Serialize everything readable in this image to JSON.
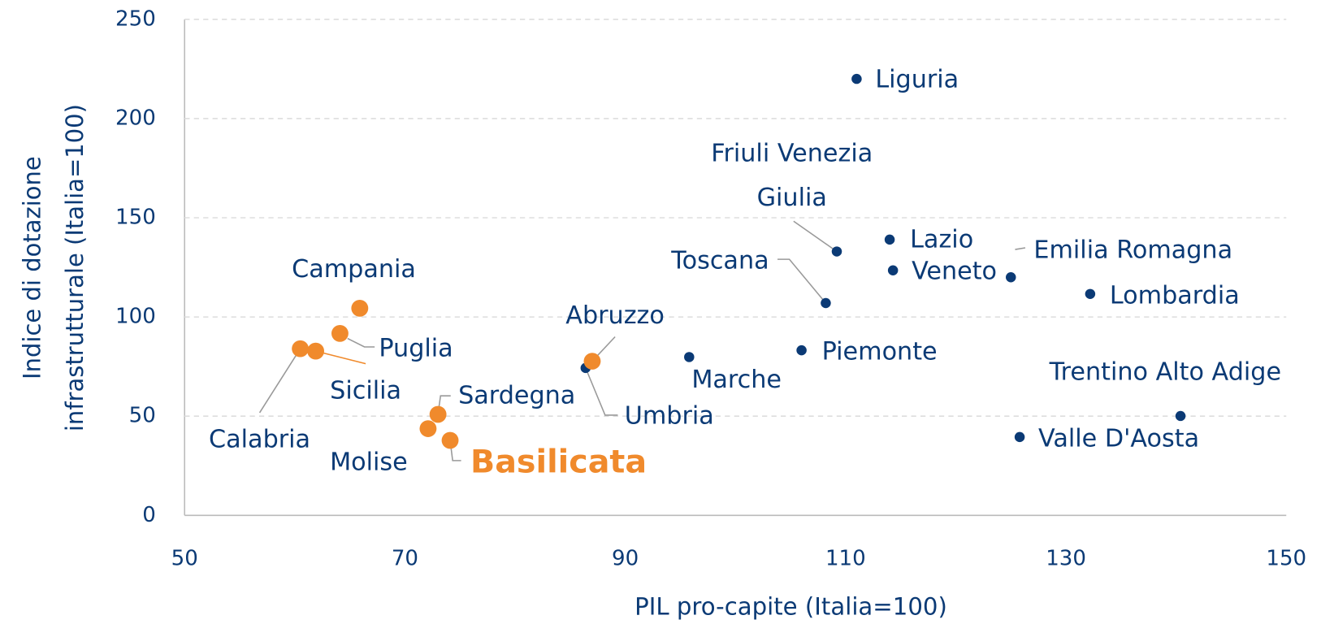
{
  "chart_data": {
    "type": "scatter",
    "xlabel": "PIL pro-capite (Italia=100)",
    "ylabel": [
      "Indice di dotazione",
      "infrastrutturale (Italia=100)"
    ],
    "xlim": [
      50,
      150
    ],
    "xticks": [
      50,
      70,
      90,
      110,
      130,
      150
    ],
    "ylim": [
      0,
      250
    ],
    "yticks": [
      0,
      50,
      100,
      150,
      200,
      250
    ],
    "grid": true,
    "series": [
      {
        "color": "#0b3a75",
        "labels": [
          "Liguria",
          "Friuli Venezia Giulia",
          "Lazio",
          "Veneto",
          "Emilia Romagna",
          "Lombardia",
          "Toscana",
          "Piemonte",
          "Marche",
          "Umbria",
          "Trentino Alto Adige",
          "Valle D'Aosta"
        ],
        "x": [
          111,
          109.2,
          114,
          114.3,
          125,
          132.2,
          108.2,
          106,
          95.8,
          86.4,
          140.4,
          125.8
        ],
        "values": [
          220,
          133,
          139,
          123.5,
          120,
          111.6,
          107,
          83.2,
          79.8,
          74.3,
          50.1,
          39.5
        ]
      },
      {
        "color": "#f08a2c",
        "labels": [
          "Campania",
          "Puglia",
          "Calabria",
          "Sicilia",
          "Abruzzo",
          "Sardegna",
          "Molise",
          "Basilicata"
        ],
        "x": [
          65.9,
          64.1,
          60.5,
          61.9,
          87,
          73,
          72.1,
          74.1
        ],
        "values": [
          104.4,
          91.7,
          84,
          82.8,
          77.7,
          50.9,
          43.7,
          37.8
        ],
        "highlight_index": 7
      }
    ]
  }
}
